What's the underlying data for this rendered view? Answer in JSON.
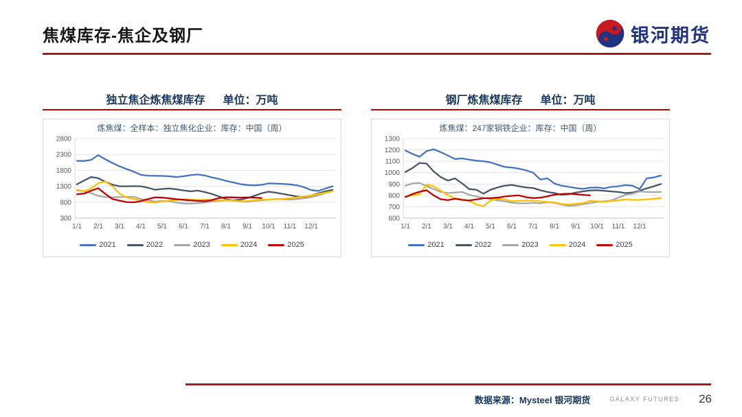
{
  "slide": {
    "title": "焦煤库存-焦企及钢厂",
    "logo_text": "银河期货",
    "footer": {
      "source": "数据来源：Mysteel 银河期货",
      "brand": "GALAXY FUTURES",
      "page": "26"
    }
  },
  "colors": {
    "rule_red": "#A61C1C",
    "title_underline_red": "#C00000",
    "chart_title_navy": "#17375E",
    "logo_blue": "#1F3380",
    "logo_red": "#C61A1F",
    "series_2021": "#4472C4",
    "series_2022": "#44546A",
    "series_2023": "#A6A6A6",
    "series_2024": "#FFC000",
    "series_2025": "#C00000"
  },
  "chart_data": [
    {
      "type": "line",
      "title": "独立焦企炼焦煤库存",
      "unit_label": "单位：万吨",
      "subtitle": "炼焦煤：全样本：独立焦化企业：库存：中国（周）",
      "ylim": [
        300,
        2800
      ],
      "ytick_step": 500,
      "grid": true,
      "legend_position": "bottom",
      "x_labels": [
        "1/1",
        "2/1",
        "3/1",
        "4/1",
        "5/1",
        "6/1",
        "7/1",
        "8/1",
        "9/1",
        "10/1",
        "11/1",
        "12/1"
      ],
      "x_note": "37 samples, about every 10 days Jan 1 to Dec 31; 2025 ends about Sep 21",
      "series": [
        {
          "name": "2021",
          "color": "#4472C4",
          "values": [
            2100,
            2095,
            2130,
            2280,
            2150,
            2030,
            1930,
            1840,
            1760,
            1660,
            1635,
            1630,
            1625,
            1615,
            1590,
            1615,
            1650,
            1670,
            1640,
            1580,
            1530,
            1470,
            1420,
            1370,
            1340,
            1330,
            1345,
            1390,
            1385,
            1375,
            1360,
            1330,
            1270,
            1180,
            1155,
            1230,
            1300
          ]
        },
        {
          "name": "2022",
          "color": "#44546A",
          "values": [
            1360,
            1480,
            1590,
            1555,
            1440,
            1350,
            1300,
            1300,
            1305,
            1300,
            1255,
            1190,
            1215,
            1230,
            1205,
            1170,
            1140,
            1165,
            1120,
            1060,
            980,
            900,
            855,
            880,
            930,
            1000,
            1080,
            1130,
            1100,
            1060,
            1020,
            980,
            960,
            1010,
            1080,
            1140,
            1190
          ]
        },
        {
          "name": "2023",
          "color": "#A6A6A6",
          "values": [
            1170,
            1150,
            1080,
            1000,
            960,
            955,
            960,
            965,
            970,
            900,
            860,
            820,
            840,
            830,
            790,
            760,
            755,
            770,
            790,
            820,
            845,
            860,
            850,
            830,
            815,
            840,
            860,
            880,
            900,
            890,
            880,
            900,
            925,
            960,
            1020,
            1090,
            1150
          ]
        },
        {
          "name": "2024",
          "color": "#FFC000",
          "values": [
            1190,
            1145,
            1230,
            1400,
            1445,
            1300,
            1070,
            950,
            900,
            850,
            800,
            785,
            825,
            850,
            870,
            890,
            880,
            870,
            880,
            870,
            860,
            870,
            845,
            830,
            835,
            860,
            880,
            875,
            890,
            905,
            920,
            950,
            980,
            1010,
            1060,
            1100,
            1140
          ]
        },
        {
          "name": "2025",
          "color": "#C00000",
          "values": [
            1050,
            1070,
            1160,
            1240,
            1060,
            900,
            850,
            805,
            795,
            830,
            900,
            950,
            945,
            920,
            895,
            875,
            855,
            840,
            830,
            870,
            930,
            955,
            950,
            945,
            950,
            945,
            930
          ]
        }
      ]
    },
    {
      "type": "line",
      "title": "钢厂炼焦煤库存",
      "unit_label": "单位：万吨",
      "subtitle": "炼焦煤：247家钢铁企业：库存：中国（周）",
      "ylim": [
        600,
        1300
      ],
      "ytick_step": 100,
      "grid": true,
      "legend_position": "bottom",
      "x_labels": [
        "1/1",
        "2/1",
        "3/1",
        "4/1",
        "5/1",
        "6/1",
        "7/1",
        "8/1",
        "9/1",
        "10/1",
        "11/1",
        "12/1"
      ],
      "x_note": "37 samples, about every 10 days Jan 1 to Dec 31; 2025 ends about Sep 21",
      "series": [
        {
          "name": "2021",
          "color": "#4472C4",
          "values": [
            1195,
            1165,
            1140,
            1190,
            1205,
            1180,
            1150,
            1120,
            1125,
            1115,
            1105,
            1100,
            1090,
            1070,
            1050,
            1045,
            1035,
            1020,
            1000,
            940,
            950,
            905,
            885,
            875,
            865,
            857,
            868,
            870,
            862,
            875,
            880,
            890,
            885,
            855,
            950,
            958,
            975
          ]
        },
        {
          "name": "2022",
          "color": "#44546A",
          "values": [
            1005,
            1040,
            1085,
            1080,
            1010,
            960,
            930,
            950,
            905,
            855,
            850,
            815,
            850,
            870,
            885,
            892,
            880,
            870,
            865,
            845,
            830,
            820,
            805,
            810,
            825,
            835,
            843,
            845,
            840,
            835,
            830,
            820,
            825,
            840,
            862,
            880,
            900
          ]
        },
        {
          "name": "2023",
          "color": "#A6A6A6",
          "values": [
            885,
            905,
            910,
            880,
            855,
            830,
            820,
            825,
            830,
            805,
            790,
            778,
            768,
            755,
            748,
            735,
            730,
            730,
            735,
            730,
            740,
            735,
            720,
            708,
            712,
            722,
            732,
            742,
            748,
            755,
            780,
            805,
            815,
            835,
            830,
            828,
            830
          ]
        },
        {
          "name": "2024",
          "color": "#FFC000",
          "values": [
            790,
            800,
            810,
            895,
            880,
            840,
            800,
            775,
            765,
            752,
            720,
            705,
            755,
            770,
            765,
            748,
            752,
            755,
            753,
            748,
            742,
            738,
            725,
            720,
            726,
            731,
            752,
            748,
            744,
            750,
            756,
            764,
            760,
            760,
            765,
            770,
            776
          ]
        },
        {
          "name": "2025",
          "color": "#C00000",
          "values": [
            785,
            812,
            832,
            845,
            800,
            766,
            758,
            770,
            760,
            755,
            765,
            775,
            776,
            780,
            790,
            796,
            800,
            784,
            776,
            780,
            792,
            806,
            812,
            815,
            810,
            805,
            800
          ]
        }
      ]
    }
  ]
}
